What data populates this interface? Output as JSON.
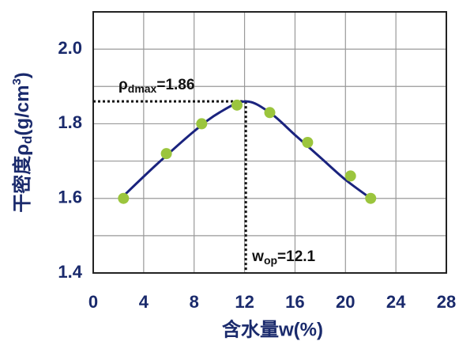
{
  "chart_data": {
    "type": "scatter",
    "y_label": {
      "main": "干密度ρ",
      "sub": "d",
      "unit": "(g/cm",
      "sup": "3",
      "close": ")"
    },
    "x_label": "含水量w(%)",
    "xlim": [
      0,
      28
    ],
    "xticks": [
      0,
      4,
      8,
      12,
      16,
      20,
      24,
      28
    ],
    "ylim": [
      1.4,
      2.1
    ],
    "yticks": [
      1.4,
      1.6,
      1.8,
      {
        "value": 2,
        "label": "2.0"
      }
    ],
    "y_minor_grid": [
      1.5,
      1.7,
      1.9
    ],
    "grid": true,
    "points": {
      "color": "#9bc53d",
      "x": [
        2.4,
        5.8,
        8.6,
        11.4,
        14,
        17,
        20.4,
        22
      ],
      "y": [
        1.6,
        1.72,
        1.8,
        1.85,
        1.83,
        1.75,
        1.66,
        1.6
      ]
    },
    "curve": {
      "color": "#1a237e",
      "x": [
        2.2,
        5,
        8,
        10,
        12.1,
        14,
        16,
        18,
        20,
        22
      ],
      "y": [
        1.6,
        1.69,
        1.78,
        1.83,
        1.86,
        1.83,
        1.77,
        1.71,
        1.65,
        1.6
      ]
    },
    "peak": {
      "x": 12.1,
      "y": 1.86
    },
    "peak_y_label": {
      "main": "ρ",
      "sub": "dmax",
      "text": "=1.86"
    },
    "peak_x_label": {
      "main": "w",
      "sub": "op",
      "text": "=12.1"
    }
  }
}
